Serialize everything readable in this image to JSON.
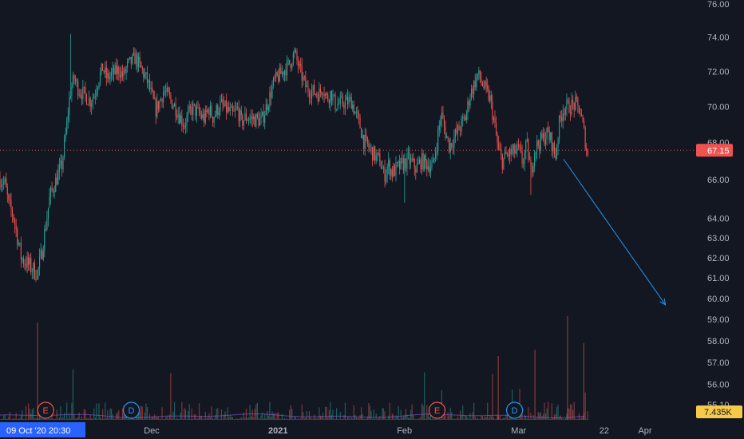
{
  "chart_data": {
    "type": "candlestick",
    "symbol_timeframe_note": "",
    "y_axis": {
      "scale": "log",
      "ticks": [
        "76.00",
        "74.00",
        "72.00",
        "70.00",
        "68.00",
        "66.00",
        "64.00",
        "63.00",
        "62.00",
        "61.00",
        "60.00",
        "59.00",
        "58.00",
        "57.00",
        "56.00",
        "55.10"
      ],
      "tick_values": [
        76,
        74,
        72,
        70,
        68,
        66,
        64,
        63,
        62,
        61,
        60,
        59,
        58,
        57,
        56,
        55.1
      ],
      "range": [
        54.8,
        76.2
      ]
    },
    "x_axis": {
      "labels": [
        {
          "text": "Dec",
          "date": "2020-12-01"
        },
        {
          "text": "2021",
          "date": "2021-01-01",
          "bold": true
        },
        {
          "text": "Feb",
          "date": "2021-02-01"
        },
        {
          "text": "Mar",
          "date": "2021-03-01"
        },
        {
          "text": "22",
          "date": "2021-03-22"
        },
        {
          "text": "Apr",
          "date": "2021-04-01"
        }
      ],
      "crosshair_label": "09 Oct '20   20:30"
    },
    "last_price": {
      "label": "67.15",
      "value": 67.15,
      "color": "#ef5350"
    },
    "volume_label": {
      "label": "7.435K",
      "color": "#f7c948"
    },
    "events": [
      {
        "type": "earnings",
        "label": "E",
        "date": "2020-11-05",
        "color": "#ef5350"
      },
      {
        "type": "dividend",
        "label": "D",
        "date": "2020-11-26",
        "color": "#2196f3"
      },
      {
        "type": "earnings",
        "label": "E",
        "date": "2021-02-09",
        "color": "#ef5350"
      },
      {
        "type": "dividend",
        "label": "D",
        "date": "2021-02-28",
        "color": "#2196f3"
      }
    ],
    "projection_arrow": {
      "from": {
        "date": "2021-03-12",
        "value": 67.1
      },
      "to": {
        "date": "2021-04-06",
        "value": 59.7
      },
      "color": "#2196f3"
    },
    "price_path": [
      [
        "2020-10-09",
        67.5
      ],
      [
        "2020-10-12",
        66.2
      ],
      [
        "2020-10-14",
        66.7
      ],
      [
        "2020-10-16",
        66.0
      ],
      [
        "2020-10-19",
        66.8
      ],
      [
        "2020-10-21",
        67.0
      ],
      [
        "2020-10-23",
        66.4
      ],
      [
        "2020-10-26",
        65.8
      ],
      [
        "2020-10-27",
        64.6
      ],
      [
        "2020-10-28",
        64.2
      ],
      [
        "2020-10-29",
        63.1
      ],
      [
        "2020-10-30",
        62.0
      ],
      [
        "2020-11-02",
        61.4
      ],
      [
        "2020-11-03",
        61.2
      ],
      [
        "2020-11-04",
        62.2
      ],
      [
        "2020-11-05",
        63.6
      ],
      [
        "2020-11-06",
        65.1
      ],
      [
        "2020-11-09",
        66.8
      ],
      [
        "2020-11-10",
        68.6
      ],
      [
        "2020-11-11",
        70.8
      ],
      [
        "2020-11-12",
        71.6
      ],
      [
        "2020-11-13",
        71.0
      ],
      [
        "2020-11-16",
        70.3
      ],
      [
        "2020-11-17",
        70.7
      ],
      [
        "2020-11-18",
        71.6
      ],
      [
        "2020-11-19",
        72.2
      ],
      [
        "2020-11-20",
        71.6
      ],
      [
        "2020-11-23",
        72.1
      ],
      [
        "2020-11-24",
        71.7
      ],
      [
        "2020-11-25",
        72.3
      ],
      [
        "2020-11-27",
        72.8
      ],
      [
        "2020-11-30",
        71.4
      ],
      [
        "2020-12-01",
        70.6
      ],
      [
        "2020-12-02",
        69.8
      ],
      [
        "2020-12-03",
        70.3
      ],
      [
        "2020-12-04",
        70.9
      ],
      [
        "2020-12-07",
        69.9
      ],
      [
        "2020-12-08",
        69.4
      ],
      [
        "2020-12-09",
        69.0
      ],
      [
        "2020-12-10",
        69.5
      ],
      [
        "2020-12-11",
        69.9
      ],
      [
        "2020-12-14",
        69.3
      ],
      [
        "2020-12-15",
        69.9
      ],
      [
        "2020-12-16",
        69.4
      ],
      [
        "2020-12-17",
        69.8
      ],
      [
        "2020-12-18",
        70.1
      ],
      [
        "2020-12-21",
        69.5
      ],
      [
        "2020-12-22",
        69.9
      ],
      [
        "2020-12-23",
        69.1
      ],
      [
        "2020-12-24",
        69.4
      ],
      [
        "2020-12-28",
        69.2
      ],
      [
        "2020-12-29",
        69.9
      ],
      [
        "2020-12-30",
        70.6
      ],
      [
        "2020-12-31",
        71.4
      ],
      [
        "2021-01-04",
        72.5
      ],
      [
        "2021-01-05",
        73.1
      ],
      [
        "2021-01-06",
        72.3
      ],
      [
        "2021-01-07",
        71.6
      ],
      [
        "2021-01-08",
        71.0
      ],
      [
        "2021-01-11",
        70.7
      ],
      [
        "2021-01-12",
        71.1
      ],
      [
        "2021-01-13",
        70.4
      ],
      [
        "2021-01-14",
        70.8
      ],
      [
        "2021-01-15",
        70.1
      ],
      [
        "2021-01-19",
        70.3
      ],
      [
        "2021-01-20",
        69.6
      ],
      [
        "2021-01-21",
        69.0
      ],
      [
        "2021-01-22",
        68.1
      ],
      [
        "2021-01-25",
        67.2
      ],
      [
        "2021-01-26",
        67.0
      ],
      [
        "2021-01-27",
        66.2
      ],
      [
        "2021-01-28",
        66.8
      ],
      [
        "2021-01-29",
        66.4
      ],
      [
        "2021-02-01",
        66.9
      ],
      [
        "2021-02-02",
        67.1
      ],
      [
        "2021-02-03",
        66.8
      ],
      [
        "2021-02-04",
        66.6
      ],
      [
        "2021-02-05",
        67.0
      ],
      [
        "2021-02-08",
        66.7
      ],
      [
        "2021-02-09",
        68.1
      ],
      [
        "2021-02-10",
        69.6
      ],
      [
        "2021-02-11",
        68.6
      ],
      [
        "2021-02-12",
        67.8
      ],
      [
        "2021-02-16",
        69.4
      ],
      [
        "2021-02-17",
        70.6
      ],
      [
        "2021-02-18",
        71.2
      ],
      [
        "2021-02-19",
        71.8
      ],
      [
        "2021-02-22",
        70.4
      ],
      [
        "2021-02-23",
        69.1
      ],
      [
        "2021-02-24",
        67.6
      ],
      [
        "2021-02-25",
        67.0
      ],
      [
        "2021-02-26",
        67.3
      ],
      [
        "2021-03-01",
        67.6
      ],
      [
        "2021-03-02",
        66.9
      ],
      [
        "2021-03-03",
        67.9
      ],
      [
        "2021-03-04",
        66.4
      ],
      [
        "2021-03-05",
        67.7
      ],
      [
        "2021-03-08",
        68.5
      ],
      [
        "2021-03-09",
        68.1
      ],
      [
        "2021-03-10",
        67.2
      ],
      [
        "2021-03-11",
        69.1
      ],
      [
        "2021-03-12",
        69.9
      ],
      [
        "2021-03-15",
        70.1
      ],
      [
        "2021-03-16",
        69.8
      ],
      [
        "2021-03-17",
        68.6
      ],
      [
        "2021-03-18",
        67.15
      ]
    ]
  }
}
